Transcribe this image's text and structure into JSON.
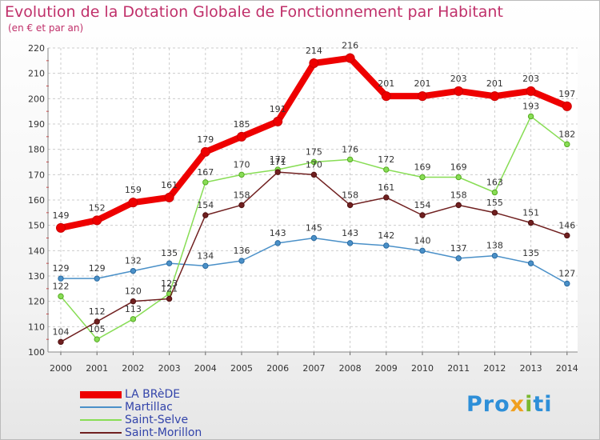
{
  "chart_data": {
    "type": "line",
    "title": "Evolution de la Dotation Globale de Fonctionnement par Habitant",
    "subtitle": "(en € et par an)",
    "x": [
      "2000",
      "2001",
      "2002",
      "2003",
      "2004",
      "2005",
      "2006",
      "2007",
      "2008",
      "2009",
      "2010",
      "2011",
      "2012",
      "2013",
      "2014"
    ],
    "ylim": [
      100,
      220
    ],
    "yticks": [
      "100",
      "110",
      "120",
      "130",
      "140",
      "150",
      "160",
      "170",
      "180",
      "190",
      "200",
      "210",
      "220"
    ],
    "series": [
      {
        "name": "LA BRèDE",
        "color": "#ee0000",
        "values": [
          149,
          152,
          159,
          161,
          179,
          185,
          191,
          214,
          216,
          201,
          201,
          203,
          201,
          203,
          197
        ],
        "labels": [
          "149",
          "152",
          "159",
          "161",
          "179",
          "185",
          "191",
          "214",
          "216",
          "201",
          "201",
          "203",
          "201",
          "203",
          "197"
        ]
      },
      {
        "name": "Martillac",
        "color": "#4a90c8",
        "values": [
          129,
          129,
          132,
          135,
          134,
          136,
          143,
          145,
          143,
          142,
          140,
          137,
          138,
          135,
          127
        ],
        "labels": [
          "129",
          "129",
          "132",
          "135",
          "134",
          "136",
          "143",
          "145",
          "143",
          "142",
          "140",
          "137",
          "138",
          "135",
          "127"
        ]
      },
      {
        "name": "Saint-Selve",
        "color": "#88dd55",
        "values": [
          122,
          105,
          113,
          123,
          167,
          170,
          172,
          175,
          176,
          172,
          169,
          169,
          163,
          193,
          182
        ],
        "labels": [
          "122",
          "105",
          "113",
          "123",
          "167",
          "170",
          "172",
          "175",
          "176",
          "172",
          "169",
          "169",
          "163",
          "193",
          "182"
        ]
      },
      {
        "name": "Saint-Morillon",
        "color": "#702020",
        "values": [
          104,
          112,
          120,
          121,
          154,
          158,
          171,
          170,
          158,
          161,
          154,
          158,
          155,
          151,
          146
        ],
        "labels": [
          "104",
          "112",
          "120",
          "121",
          "154",
          "158",
          "171",
          "170",
          "158",
          "161",
          "154",
          "158",
          "155",
          "151",
          "146"
        ]
      }
    ]
  },
  "logo": {
    "p1": "Pro",
    "p2": "x",
    "p3": "i",
    "p4": "ti"
  }
}
